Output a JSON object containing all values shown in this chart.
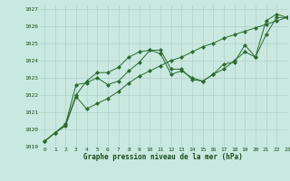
{
  "title": "Graphe pression niveau de la mer (hPa)",
  "background_color": "#c8e8e0",
  "grid_color": "#b0d0c8",
  "line_color": "#2d6a2d",
  "xlim": [
    -0.5,
    23
  ],
  "ylim": [
    1019,
    1027.2
  ],
  "yticks": [
    1019,
    1020,
    1021,
    1022,
    1023,
    1024,
    1025,
    1026,
    1027
  ],
  "xticks": [
    0,
    1,
    2,
    3,
    4,
    5,
    6,
    7,
    8,
    9,
    10,
    11,
    12,
    13,
    14,
    15,
    16,
    17,
    18,
    19,
    20,
    21,
    22,
    23
  ],
  "series1_x": [
    0,
    1,
    2,
    3,
    4,
    5,
    6,
    7,
    8,
    9,
    10,
    11,
    12,
    13,
    14,
    15,
    16,
    17,
    18,
    19,
    20,
    21,
    22,
    23
  ],
  "series1_y": [
    1019.3,
    1019.8,
    1020.3,
    1022.0,
    1022.8,
    1023.3,
    1023.3,
    1023.6,
    1024.2,
    1024.5,
    1024.6,
    1024.6,
    1023.5,
    1023.5,
    1022.9,
    1022.8,
    1023.2,
    1023.8,
    1023.9,
    1024.9,
    1024.2,
    1026.3,
    1026.7,
    1026.5
  ],
  "series2_x": [
    0,
    1,
    2,
    3,
    4,
    5,
    6,
    7,
    8,
    9,
    10,
    11,
    12,
    13,
    14,
    15,
    16,
    17,
    18,
    19,
    20,
    21,
    22,
    23
  ],
  "series2_y": [
    1019.3,
    1019.8,
    1020.2,
    1021.9,
    1021.2,
    1021.5,
    1021.8,
    1022.2,
    1022.7,
    1023.1,
    1023.4,
    1023.7,
    1024.0,
    1024.2,
    1024.5,
    1024.8,
    1025.0,
    1025.3,
    1025.5,
    1025.7,
    1025.9,
    1026.1,
    1026.3,
    1026.5
  ],
  "series3_x": [
    0,
    1,
    2,
    3,
    4,
    5,
    6,
    7,
    8,
    9,
    10,
    11,
    12,
    13,
    14,
    15,
    16,
    17,
    18,
    19,
    20,
    21,
    22,
    23
  ],
  "series3_y": [
    1019.3,
    1019.8,
    1020.3,
    1022.6,
    1022.7,
    1023.0,
    1022.6,
    1022.8,
    1023.4,
    1023.9,
    1024.6,
    1024.4,
    1023.2,
    1023.4,
    1023.0,
    1022.8,
    1023.2,
    1023.5,
    1024.0,
    1024.5,
    1024.2,
    1025.5,
    1026.5,
    1026.5
  ]
}
